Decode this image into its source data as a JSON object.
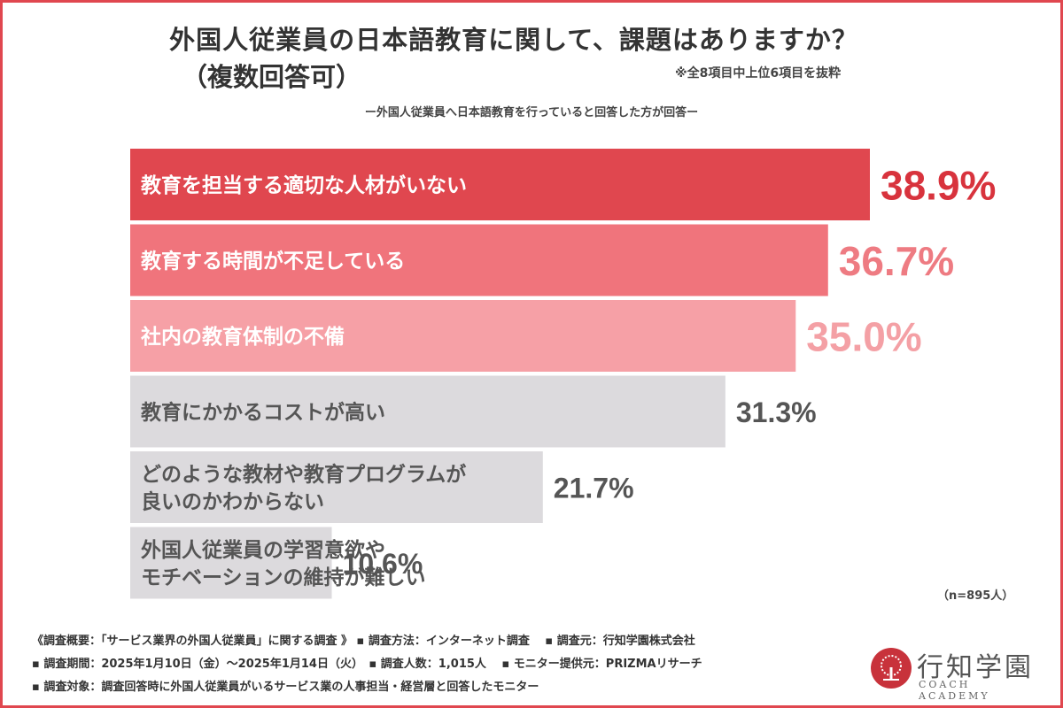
{
  "header": {
    "title": "外国人従業員の日本語教育に関して、課題はありますか？",
    "subtitle": "（複数回答可）",
    "note": "※全8項目中上位6項目を抜粋",
    "respondents": "ー外国人従業員へ日本語教育を行っていると回答した方が回答ー"
  },
  "chart_data": {
    "type": "bar",
    "orientation": "horizontal",
    "categories": [
      [
        "教育を担当する適切な人材がいない"
      ],
      [
        "教育する時間が不足している"
      ],
      [
        "社内の教育体制の不備"
      ],
      [
        "教育にかかるコストが高い"
      ],
      [
        "どのような教材や教育プログラムが",
        "良いのかわからない"
      ],
      [
        "外国人従業員の学習意欲や",
        "モチベーションの維持が難しい"
      ]
    ],
    "values": [
      38.9,
      36.7,
      35.0,
      31.3,
      21.7,
      10.6
    ],
    "value_labels": [
      "38.9%",
      "36.7%",
      "35.0%",
      "31.3%",
      "21.7%",
      "10.6%"
    ],
    "colors": [
      "#e0474f",
      "#f0747c",
      "#f6a0a6",
      "#dcdadd",
      "#dcdadd",
      "#dcdadd"
    ],
    "value_colors": [
      "#d8333d",
      "#ee7b82",
      "#f4a0a5",
      "#555555",
      "#555555",
      "#555555"
    ],
    "xlim": [
      0,
      38.9
    ],
    "sample_note": "（n=895人）"
  },
  "footer": {
    "line1": "《調査概要：「サービス業界の外国人従業員」に関する調査 》 ▪ 調査方法：インターネット調査　 ▪ 調査元：行知学園株式会社",
    "line2": "▪ 調査期間：2025年1月10日（金）～2025年1月14日（火）　▪ 調査人数：1,015人　 ▪ モニター提供元：PRIZMAリサーチ",
    "line3": "▪ 調査対象：調査回答時に外国人従業員がいるサービス業の人事担当・経営層と回答したモニター"
  },
  "logo": {
    "name": "行知学園",
    "sub": "COACH ACADEMY"
  }
}
